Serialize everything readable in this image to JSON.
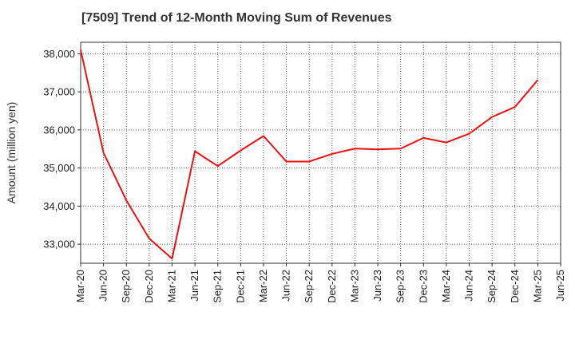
{
  "chart_data": {
    "type": "line",
    "title": "[7509]  Trend of 12-Month Moving Sum of Revenues",
    "xlabel": "",
    "ylabel": "Amount (million yen)",
    "x_tick_labels": [
      "Mar-20",
      "Jun-20",
      "Sep-20",
      "Dec-20",
      "Mar-21",
      "Jun-21",
      "Sep-21",
      "Dec-21",
      "Mar-22",
      "Jun-22",
      "Sep-22",
      "Dec-22",
      "Mar-23",
      "Jun-23",
      "Sep-23",
      "Dec-23",
      "Mar-24",
      "Jun-24",
      "Sep-24",
      "Dec-24",
      "Mar-25",
      "Jun-25"
    ],
    "y_ticks": [
      33000,
      34000,
      35000,
      36000,
      37000,
      38000
    ],
    "y_tick_labels": [
      "33,000",
      "34,000",
      "35,000",
      "36,000",
      "37,000",
      "38,000"
    ],
    "ylim": [
      32500,
      38300
    ],
    "grid": true,
    "grid_style": "dotted",
    "series": [
      {
        "color": "#ee1111",
        "x": [
          "Mar-20",
          "Jun-20",
          "Sep-20",
          "Dec-20",
          "Mar-21",
          "Jun-21",
          "Sep-21",
          "Dec-21",
          "Mar-22",
          "Jun-22",
          "Sep-22",
          "Dec-22",
          "Mar-23",
          "Jun-23",
          "Sep-23",
          "Dec-23",
          "Mar-24",
          "Jun-24",
          "Sep-24",
          "Dec-24",
          "Mar-25"
        ],
        "values": [
          38100,
          35400,
          34150,
          33150,
          32620,
          35440,
          35050,
          35460,
          35840,
          35170,
          35170,
          35370,
          35510,
          35490,
          35510,
          35790,
          35670,
          35900,
          36340,
          36600,
          37310
        ]
      }
    ]
  }
}
